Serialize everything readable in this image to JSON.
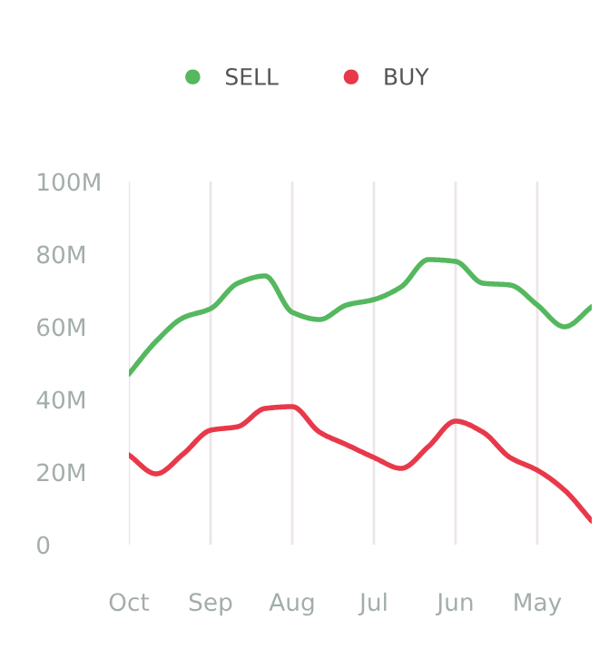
{
  "chart_data": {
    "type": "line",
    "categories": [
      "Oct",
      null,
      null,
      "Sep",
      null,
      null,
      "Aug",
      null,
      null,
      "Jul",
      null,
      null,
      "Jun",
      null,
      null,
      "May",
      null,
      null
    ],
    "ylim": [
      0,
      100
    ],
    "yticks": [
      {
        "value": 0,
        "label": "0"
      },
      {
        "value": 20,
        "label": "20M"
      },
      {
        "value": 40,
        "label": "40M"
      },
      {
        "value": 60,
        "label": "60M"
      },
      {
        "value": 80,
        "label": "80M"
      },
      {
        "value": 100,
        "label": "100M"
      }
    ],
    "grid": "x",
    "legend": "top",
    "marker": "none",
    "line_style": "solid",
    "series": [
      {
        "name": "SELL",
        "color": "#55b85f",
        "values": [
          47,
          56,
          62.5,
          65,
          72,
          74,
          64,
          62,
          66,
          67.5,
          71,
          78.5,
          78,
          72,
          71.5,
          66,
          60,
          65.5
        ]
      },
      {
        "name": "BUY",
        "color": "#e8394a",
        "values": [
          24.7,
          19.5,
          25,
          31.5,
          32.5,
          37.5,
          38,
          31,
          27.5,
          24,
          21,
          27,
          34,
          31,
          24,
          20.5,
          15,
          6.5
        ]
      }
    ]
  }
}
